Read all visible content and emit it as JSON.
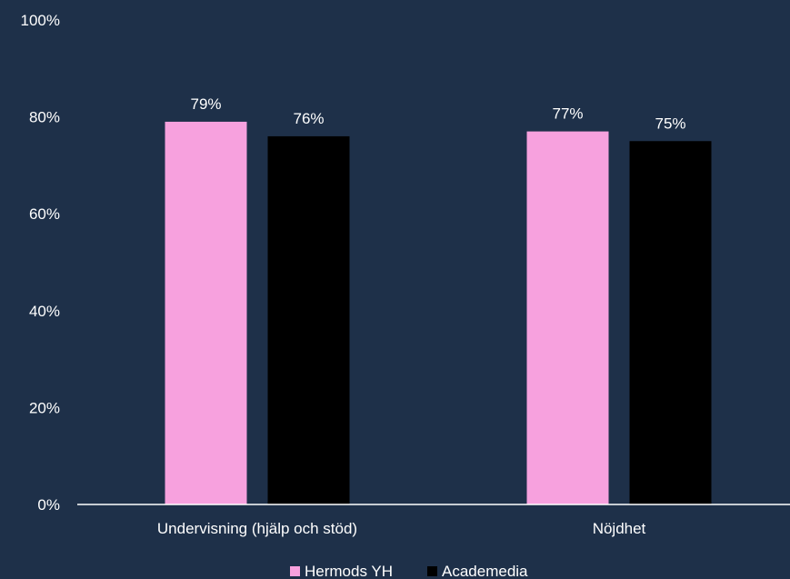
{
  "chart_data": {
    "type": "bar",
    "categories": [
      "Undervisning (hjälp och stöd)",
      "Nöjdhet"
    ],
    "series": [
      {
        "name": "Hermods YH",
        "values": [
          79,
          76
        ],
        "color": "#f7a1de"
      },
      {
        "name": "Academedia",
        "values": [
          77,
          75
        ],
        "color": "#000000"
      }
    ],
    "ylim": [
      0,
      100
    ],
    "yticks": [
      0,
      20,
      40,
      60,
      80,
      100
    ],
    "tick_suffix": "%",
    "value_labels": [
      [
        "79%",
        "76%"
      ],
      [
        "77%",
        "75%"
      ]
    ],
    "grid": false,
    "legend": "bottom",
    "background": "#1e3049",
    "axis_color": "#ffffff"
  }
}
